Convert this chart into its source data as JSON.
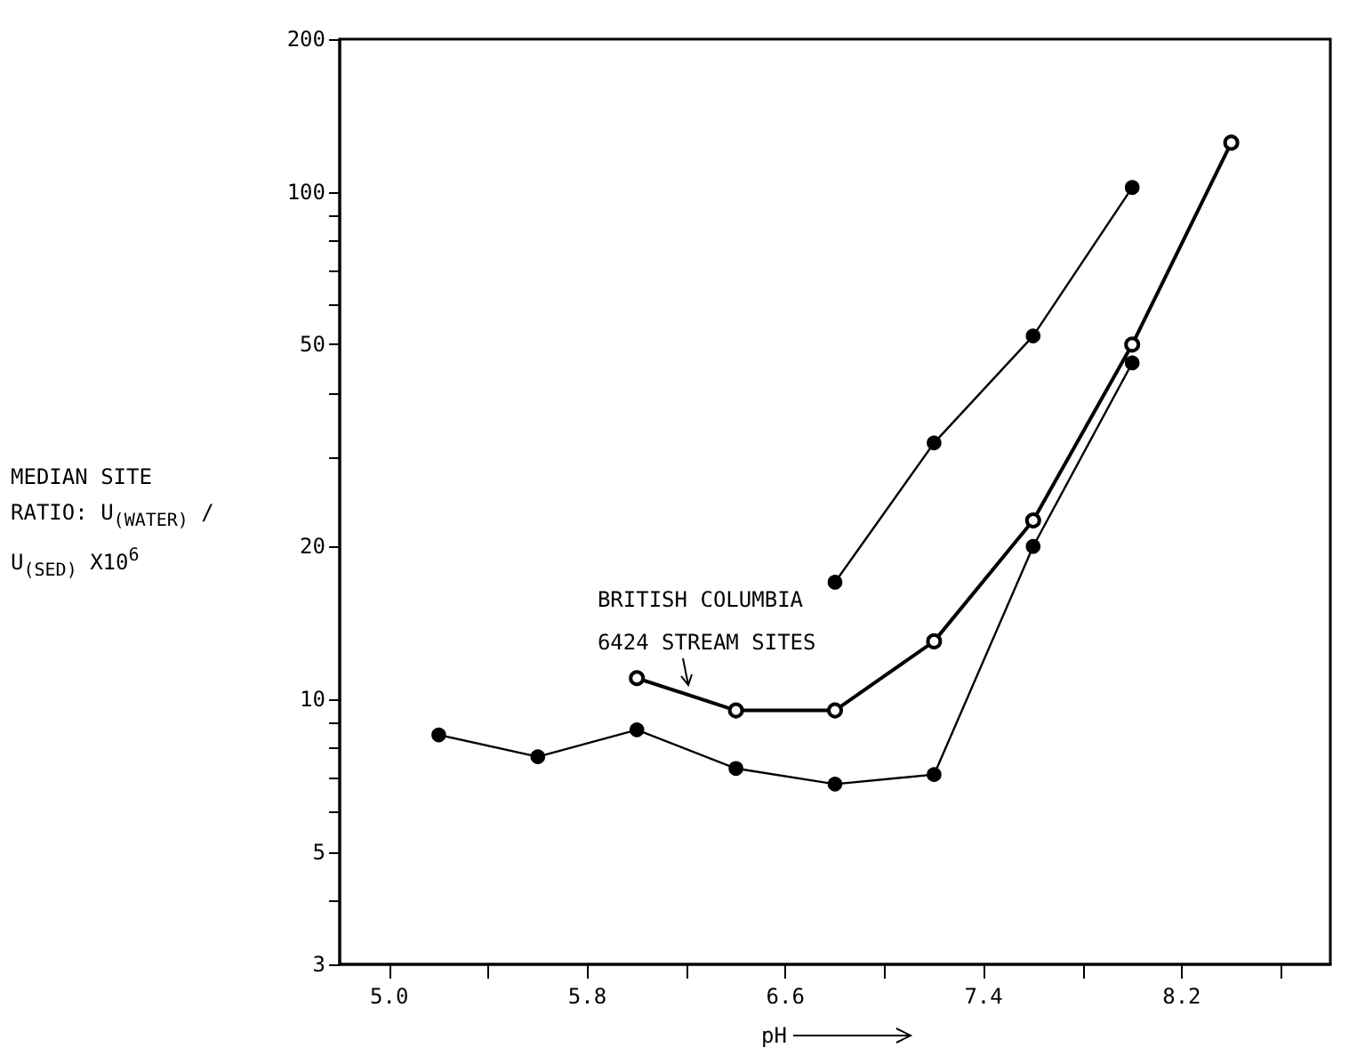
{
  "chart_data": {
    "type": "line",
    "xlabel": "pH",
    "ylabel": "MEDIAN SITE RATIO: U$_{(WATER)}$ / U$_{(SED)}$ X10$^{6}$",
    "annotations": [
      {
        "text": "BRITISH COLUMBIA 6424 STREAM SITES",
        "x": 6.2,
        "y": 10.5
      }
    ],
    "xlim": [
      4.8,
      8.8
    ],
    "xticks": [
      {
        "value": 5.0,
        "label": "5.0"
      },
      {
        "value": 5.4,
        "label": null
      },
      5.8,
      {
        "value": 6.2,
        "label": null
      },
      6.6,
      {
        "value": 7.0,
        "label": null
      },
      7.4,
      {
        "value": 7.8,
        "label": null
      },
      8.2,
      {
        "value": 8.6,
        "label": null
      }
    ],
    "ylim": [
      3,
      200
    ],
    "yticks": [
      3,
      {
        "value": 4,
        "label": null
      },
      5,
      {
        "value": 6,
        "label": null
      },
      {
        "value": 7,
        "label": null
      },
      {
        "value": 8,
        "label": null
      },
      {
        "value": 9,
        "label": null
      },
      10,
      20,
      {
        "value": 30,
        "label": null
      },
      {
        "value": 40,
        "label": null
      },
      50,
      {
        "value": 60,
        "label": null
      },
      {
        "value": 70,
        "label": null
      },
      {
        "value": 80,
        "label": null
      },
      {
        "value": 90,
        "label": null
      },
      100,
      200
    ],
    "log": "y",
    "grid": false,
    "marker": "circle",
    "line_style": "solid",
    "series": [
      {
        "color": "#000000",
        "x": [
          5.2,
          5.6,
          6.0,
          6.4,
          6.8,
          7.2,
          7.6,
          8.0
        ],
        "values": [
          8.5,
          7.7,
          8.7,
          7.3,
          6.8,
          7.1,
          20,
          46
        ]
      },
      {
        "color": "#000000",
        "marker": "open circle",
        "x": [
          6.0,
          6.4,
          6.8,
          7.2,
          7.6,
          8.0,
          8.4
        ],
        "values": [
          11,
          9.5,
          9.5,
          13,
          22.5,
          50,
          125
        ]
      },
      {
        "color": "#000000",
        "x": [
          6.8,
          7.2,
          7.6,
          8.0
        ],
        "values": [
          17,
          32,
          52,
          102
        ]
      }
    ]
  }
}
